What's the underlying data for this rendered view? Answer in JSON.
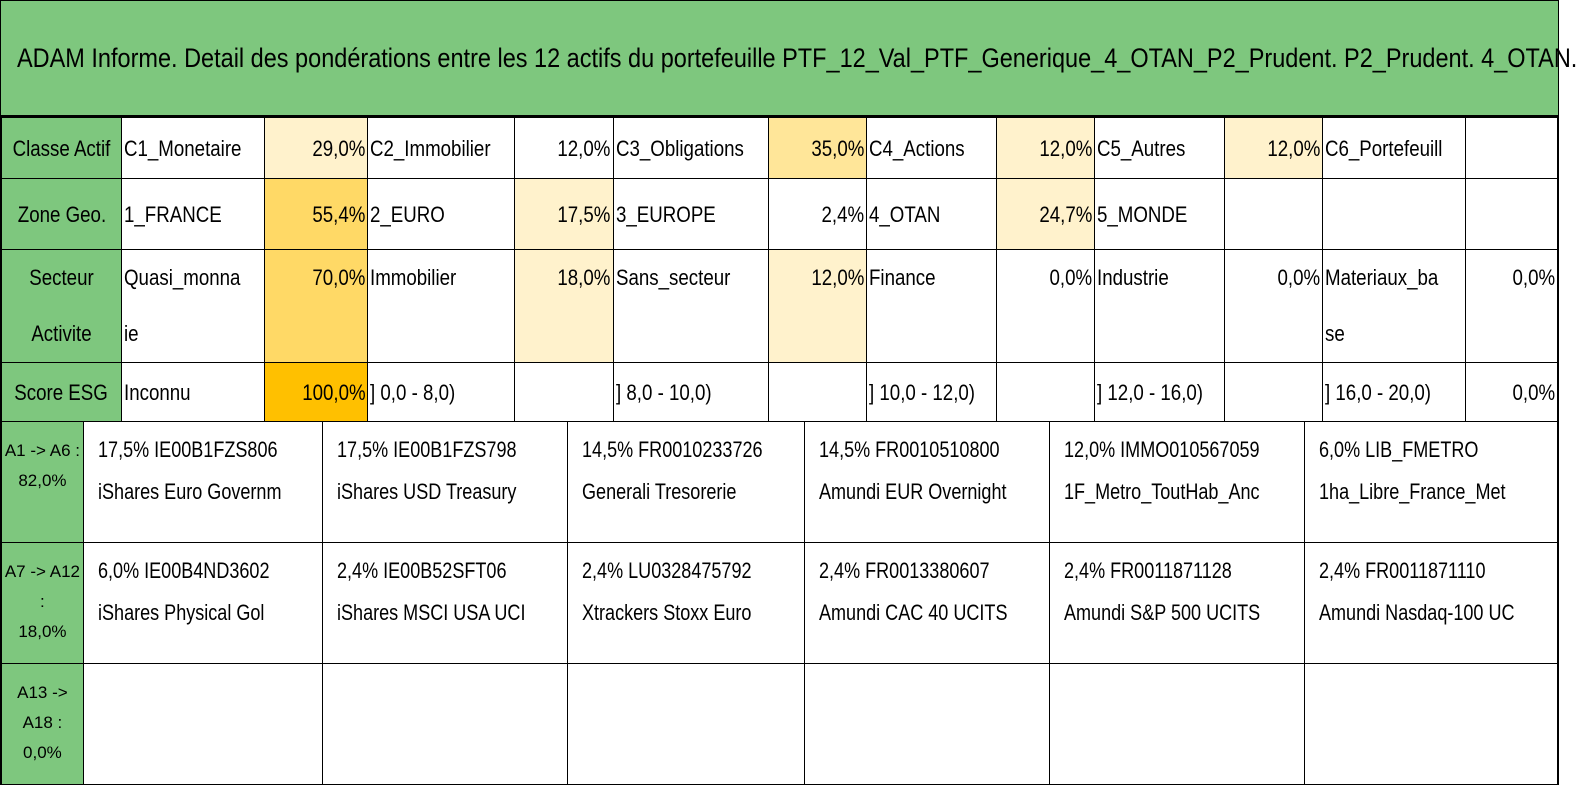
{
  "title": "ADAM Informe. Detail des pondérations entre les 12 actifs du portefeuille PTF_12_Val_PTF_Generique_4_OTAN_P2_Prudent. P2_Prudent. 4_OTAN.",
  "colors": {
    "header_green": "#7ec77e",
    "heat_light": "#fff2cc",
    "heat_mid": "#ffe699",
    "heat_strong": "#ffd966",
    "heat_max": "#ffc000"
  },
  "rows": {
    "classe": {
      "label": "Classe Actif",
      "cells": [
        {
          "name": "C1_Monetaire",
          "value": "29,0%"
        },
        {
          "name": "C2_Immobilier",
          "value": "12,0%"
        },
        {
          "name": "C3_Obligations",
          "value": "35,0%"
        },
        {
          "name": "C4_Actions",
          "value": "12,0%"
        },
        {
          "name": "C5_Autres",
          "value": "12,0%"
        },
        {
          "name": "C6_Portefeuill",
          "value": ""
        }
      ]
    },
    "zone": {
      "label": "Zone Geo.",
      "cells": [
        {
          "name": "1_FRANCE",
          "value": "55,4%"
        },
        {
          "name": "2_EURO",
          "value": "17,5%"
        },
        {
          "name": "3_EUROPE",
          "value": "2,4%"
        },
        {
          "name": "4_OTAN",
          "value": "24,7%"
        },
        {
          "name": "5_MONDE",
          "value": ""
        },
        {
          "name": "",
          "value": ""
        }
      ]
    },
    "secteur": {
      "label": "Secteur Activite",
      "cells": [
        {
          "name": "Quasi_monnaie",
          "value": "70,0%"
        },
        {
          "name": "Immobilier",
          "value": "18,0%"
        },
        {
          "name": "Sans_secteur",
          "value": "12,0%"
        },
        {
          "name": "Finance",
          "value": "0,0%"
        },
        {
          "name": "Industrie",
          "value": "0,0%"
        },
        {
          "name": "Materiaux_base",
          "value": "0,0%"
        }
      ]
    },
    "esg": {
      "label": "Score ESG",
      "cells": [
        {
          "name": "Inconnu",
          "value": "100,0%"
        },
        {
          "name": "] 0,0 - 8,0)",
          "value": ""
        },
        {
          "name": "] 8,0 - 10,0)",
          "value": ""
        },
        {
          "name": "] 10,0 - 12,0)",
          "value": ""
        },
        {
          "name": "] 12,0 - 16,0)",
          "value": ""
        },
        {
          "name": "] 16,0 - 20,0)",
          "value": "0,0%"
        }
      ]
    }
  },
  "asset_rows": [
    {
      "label1": "A1 -> A6 :",
      "label2": "82,0%",
      "cells": [
        {
          "line1": "17,5% IE00B1FZS806",
          "line2": "iShares Euro Governm"
        },
        {
          "line1": "17,5% IE00B1FZS798",
          "line2": "iShares USD Treasury"
        },
        {
          "line1": "14,5% FR0010233726",
          "line2": "Generali Tresorerie"
        },
        {
          "line1": "14,5% FR0010510800",
          "line2": "Amundi EUR Overnight"
        },
        {
          "line1": "12,0% IMMO010567059",
          "line2": "1F_Metro_ToutHab_Anc"
        },
        {
          "line1": "6,0% LIB_FMETRO",
          "line2": "1ha_Libre_France_Met"
        }
      ]
    },
    {
      "label1": "A7 -> A12 :",
      "label2": "18,0%",
      "cells": [
        {
          "line1": "6,0% IE00B4ND3602",
          "line2": "iShares Physical Gol"
        },
        {
          "line1": "2,4% IE00B52SFT06",
          "line2": "iShares MSCI USA UCI"
        },
        {
          "line1": "2,4% LU0328475792",
          "line2": "Xtrackers Stoxx Euro"
        },
        {
          "line1": "2,4% FR0013380607",
          "line2": "Amundi CAC 40 UCITS"
        },
        {
          "line1": "2,4% FR0011871128",
          "line2": "Amundi S&P 500 UCITS"
        },
        {
          "line1": "2,4% FR0011871110",
          "line2": "Amundi Nasdaq-100 UC"
        }
      ]
    },
    {
      "label1": "A13 -> A18 :",
      "label2": "0,0%",
      "cells": [
        {
          "line1": "",
          "line2": ""
        },
        {
          "line1": "",
          "line2": ""
        },
        {
          "line1": "",
          "line2": ""
        },
        {
          "line1": "",
          "line2": ""
        },
        {
          "line1": "",
          "line2": ""
        },
        {
          "line1": "",
          "line2": ""
        }
      ]
    }
  ]
}
